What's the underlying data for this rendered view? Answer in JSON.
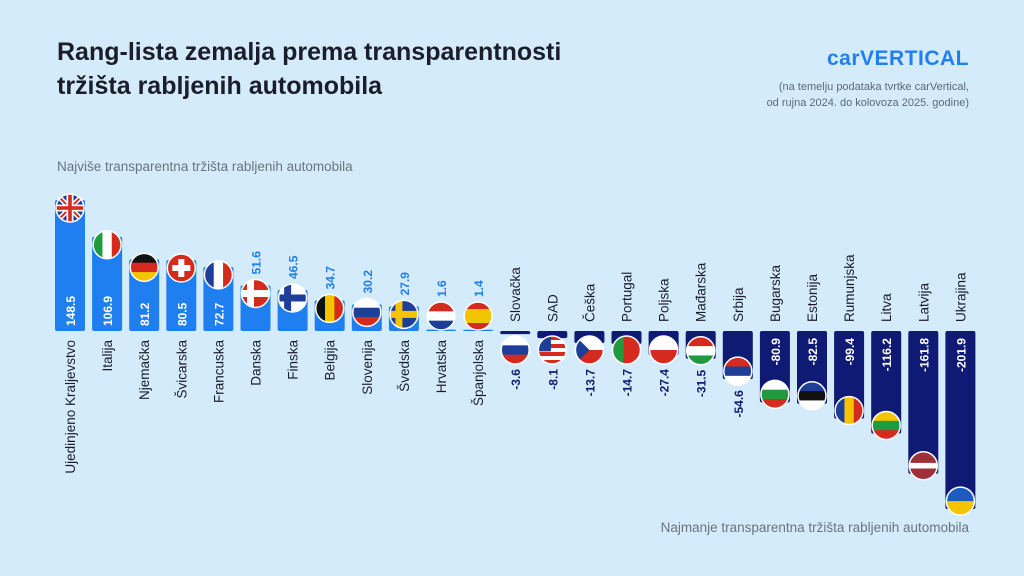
{
  "chart_data": {
    "type": "bar",
    "title": [
      "Rang-lista zemalja prema transparentnosti",
      "tržišta rabljenih automobila"
    ],
    "brand": "carVERTICAL",
    "source": [
      "(na temelju podataka tvrtke carVertical,",
      "od rujna 2024. do kolovoza 2025. godine)"
    ],
    "top_label": "Najviše transparentna tržišta rabljenih automobila",
    "bottom_label": "Najmanje transparentna tržišta rabljenih automobila",
    "categories": [
      "Ujedinjeno Kraljevstvo",
      "Italija",
      "Njemačka",
      "Švicarska",
      "Francuska",
      "Danska",
      "Finska",
      "Belgija",
      "Slovenija",
      "Švedska",
      "Hrvatska",
      "Španjolska",
      "Slovačka",
      "SAD",
      "Češka",
      "Portugal",
      "Poljska",
      "Mađarska",
      "Srbija",
      "Bugarska",
      "Estonija",
      "Rumunjska",
      "Litva",
      "Latvija",
      "Ukrajina"
    ],
    "values": [
      148.5,
      106.9,
      81.2,
      80.5,
      72.7,
      51.6,
      46.5,
      34.7,
      30.2,
      27.9,
      1.6,
      1.4,
      -3.6,
      -8.1,
      -13.7,
      -14.7,
      -27.4,
      -31.5,
      -54.6,
      -80.9,
      -82.5,
      -99.4,
      -116.2,
      -161.8,
      -201.9
    ],
    "positive_color": "#1f7ff0",
    "negative_color": "#0e1a73"
  }
}
